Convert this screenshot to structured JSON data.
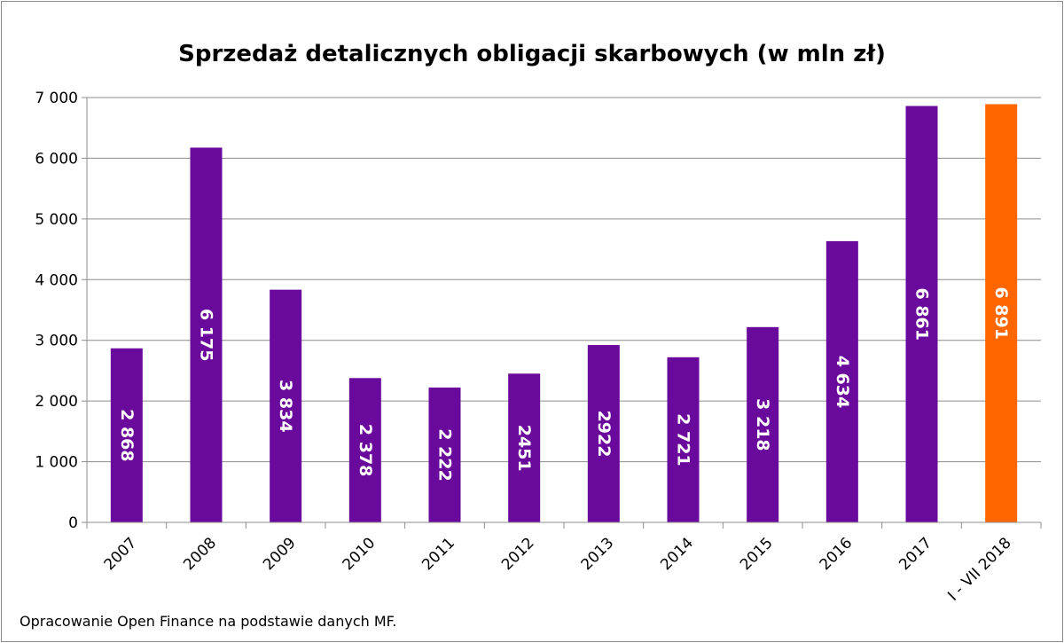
{
  "chart_data": {
    "type": "bar",
    "title": "Sprzedaż detalicznych obligacji skarbowych (w mln zł)",
    "categories": [
      "2007",
      "2008",
      "2009",
      "2010",
      "2011",
      "2012",
      "2013",
      "2014",
      "2015",
      "2016",
      "2017",
      "I - VII 2018"
    ],
    "values": [
      2868,
      6175,
      3834,
      2378,
      2222,
      2451,
      2922,
      2721,
      3218,
      4634,
      6861,
      6891
    ],
    "data_labels": [
      "2 868",
      "6 175",
      "3 834",
      "2 378",
      "2 222",
      "2451",
      "2922",
      "2 721",
      "3 218",
      "4 634",
      "6 861",
      "6 891"
    ],
    "ylim": [
      0,
      7000
    ],
    "yticks": [
      0,
      1000,
      2000,
      3000,
      4000,
      5000,
      6000,
      7000
    ],
    "ytick_labels": [
      "0",
      "1 000",
      "2 000",
      "3 000",
      "4 000",
      "5 000",
      "6 000",
      "7 000"
    ],
    "grid": true,
    "xlabel": "",
    "ylabel": "",
    "colors": {
      "default": "#6a0a9c",
      "highlight": "#ff6600"
    },
    "highlight_index": 11
  },
  "footer": {
    "source": "Opracowanie Open Finance na podstawie danych MF."
  }
}
